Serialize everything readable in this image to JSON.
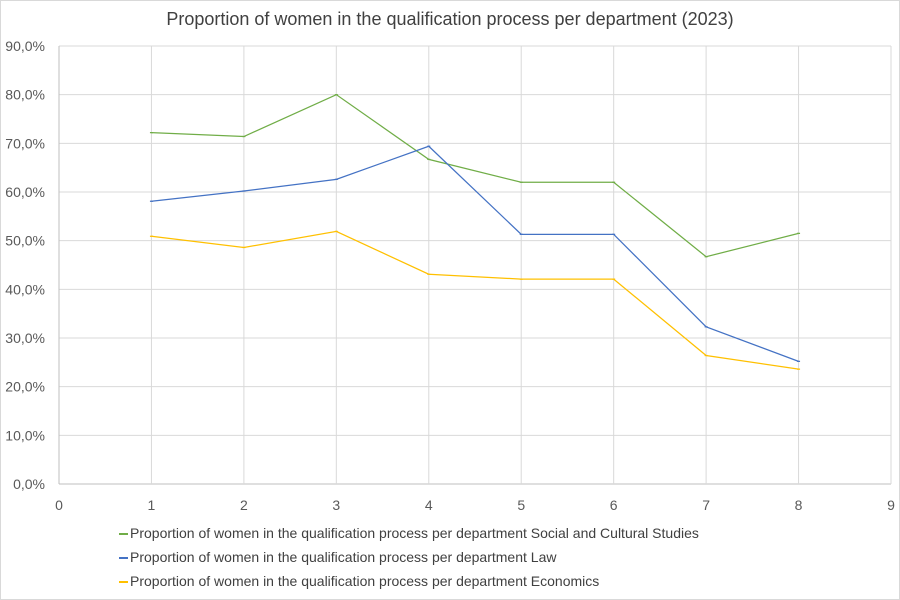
{
  "chart_data": {
    "type": "line",
    "title": "Proportion of women in the qualification process per department (2023)",
    "xlabel": "",
    "ylabel": "",
    "xlim": [
      0,
      9
    ],
    "ylim": [
      0,
      90
    ],
    "x_ticks": [
      "0",
      "1",
      "2",
      "3",
      "4",
      "5",
      "6",
      "7",
      "8",
      "9"
    ],
    "y_ticks": [
      "0,0%",
      "10,0%",
      "20,0%",
      "30,0%",
      "40,0%",
      "50,0%",
      "60,0%",
      "70,0%",
      "80,0%",
      "90,0%"
    ],
    "grid": true,
    "legend_position": "bottom",
    "x": [
      1,
      2,
      3,
      4,
      5,
      6,
      7,
      8
    ],
    "series": [
      {
        "name": "Proportion of women in the qualification process per department Social and Cultural Studies",
        "color": "#70ad47",
        "values": [
          72.2,
          71.4,
          80.0,
          66.7,
          62.0,
          62.0,
          46.7,
          51.5
        ]
      },
      {
        "name": "Proportion of women in the qualification process per department Law",
        "color": "#4472c4",
        "values": [
          58.1,
          60.2,
          62.6,
          69.4,
          51.3,
          51.3,
          32.3,
          25.2
        ]
      },
      {
        "name": "Proportion of women in the qualification process per department Economics",
        "color": "#ffc000",
        "values": [
          50.9,
          48.6,
          51.9,
          43.1,
          42.1,
          42.1,
          26.4,
          23.6
        ]
      }
    ]
  }
}
